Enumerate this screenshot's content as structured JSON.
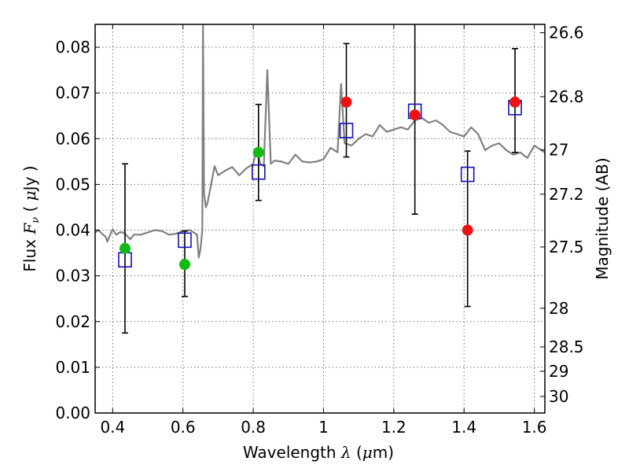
{
  "chart_data": {
    "type": "scatter",
    "xlabel": "Wavelength  λ (μm)",
    "ylabel": "Flux  Fν  ( μJy )",
    "ylabel_right": "Magnitude (AB)",
    "xlim": [
      0.35,
      1.63
    ],
    "ylim": [
      0.0,
      0.085
    ],
    "x_ticks": [
      0.4,
      0.6,
      0.8,
      1.0,
      1.2,
      1.4,
      1.6
    ],
    "x_tick_labels": [
      "0.4",
      "0.6",
      "0.8",
      "1",
      "1.2",
      "1.4",
      "1.6"
    ],
    "y_ticks": [
      0.0,
      0.01,
      0.02,
      0.03,
      0.04,
      0.05,
      0.06,
      0.07,
      0.08
    ],
    "y_tick_labels": [
      "0.00",
      "0.01",
      "0.02",
      "0.03",
      "0.04",
      "0.05",
      "0.06",
      "0.07",
      "0.08"
    ],
    "mag_tick_labels": [
      "26.6",
      "26.8",
      "27",
      "27.2",
      "27.5",
      "28",
      "28.5",
      "29",
      "30"
    ],
    "mag_ticks": [
      26.6,
      26.8,
      27.0,
      27.2,
      27.5,
      28.0,
      28.5,
      29.0,
      30.0
    ],
    "grid": true,
    "colors": {
      "model": "#808080",
      "detection": "#11bb11",
      "upper": "#ee1111",
      "model_phot": "#1111bb",
      "errorbar": "#000000"
    },
    "model_spectrum": {
      "x": [
        0.35,
        0.36,
        0.37,
        0.38,
        0.385,
        0.39,
        0.4,
        0.41,
        0.42,
        0.43,
        0.44,
        0.45,
        0.46,
        0.48,
        0.5,
        0.52,
        0.54,
        0.56,
        0.58,
        0.6,
        0.62,
        0.64,
        0.645,
        0.65,
        0.655,
        0.657,
        0.66,
        0.665,
        0.67,
        0.68,
        0.69,
        0.7,
        0.72,
        0.74,
        0.76,
        0.78,
        0.8,
        0.81,
        0.82,
        0.83,
        0.84,
        0.85,
        0.86,
        0.88,
        0.9,
        0.92,
        0.94,
        0.96,
        0.98,
        1.0,
        1.02,
        1.04,
        1.05,
        1.06,
        1.08,
        1.1,
        1.12,
        1.14,
        1.16,
        1.18,
        1.2,
        1.22,
        1.24,
        1.26,
        1.28,
        1.3,
        1.32,
        1.34,
        1.36,
        1.38,
        1.4,
        1.42,
        1.44,
        1.46,
        1.48,
        1.5,
        1.52,
        1.54,
        1.56,
        1.58,
        1.6,
        1.62,
        1.63
      ],
      "y": [
        0.0395,
        0.04,
        0.0392,
        0.0385,
        0.0375,
        0.0385,
        0.0402,
        0.039,
        0.0395,
        0.0395,
        0.0388,
        0.038,
        0.039,
        0.039,
        0.0395,
        0.04,
        0.0398,
        0.039,
        0.0392,
        0.0398,
        0.04,
        0.039,
        0.034,
        0.036,
        0.04,
        0.085,
        0.048,
        0.045,
        0.046,
        0.05,
        0.054,
        0.052,
        0.053,
        0.0538,
        0.052,
        0.0535,
        0.0545,
        0.058,
        0.0545,
        0.054,
        0.075,
        0.0545,
        0.0552,
        0.055,
        0.0545,
        0.0565,
        0.055,
        0.0548,
        0.055,
        0.0555,
        0.058,
        0.057,
        0.072,
        0.059,
        0.0585,
        0.06,
        0.061,
        0.0605,
        0.063,
        0.0615,
        0.062,
        0.0625,
        0.062,
        0.064,
        0.0645,
        0.0635,
        0.064,
        0.063,
        0.0615,
        0.061,
        0.0605,
        0.0625,
        0.061,
        0.0575,
        0.0585,
        0.059,
        0.0575,
        0.0565,
        0.057,
        0.0558,
        0.0585,
        0.0575,
        0.057
      ]
    },
    "detections": {
      "x": [
        0.435,
        0.605,
        0.815
      ],
      "y": [
        0.036,
        0.0325,
        0.057
      ]
    },
    "upper_points": {
      "x": [
        1.065,
        1.26,
        1.41,
        1.545
      ],
      "y": [
        0.068,
        0.0652,
        0.04,
        0.068
      ]
    },
    "model_photometry": {
      "x": [
        0.435,
        0.605,
        0.815,
        1.065,
        1.26,
        1.41,
        1.545
      ],
      "y": [
        0.0335,
        0.0378,
        0.0527,
        0.0618,
        0.066,
        0.0522,
        0.0668
      ]
    },
    "error_bars": [
      {
        "x": 0.435,
        "low": 0.0175,
        "high": 0.0545
      },
      {
        "x": 0.605,
        "low": 0.0255,
        "high": 0.0398
      },
      {
        "x": 0.815,
        "low": 0.0465,
        "high": 0.0675
      },
      {
        "x": 1.065,
        "low": 0.056,
        "high": 0.0808
      },
      {
        "x": 1.26,
        "low": 0.0435,
        "high": 0.087
      },
      {
        "x": 1.41,
        "low": 0.0233,
        "high": 0.0573
      },
      {
        "x": 1.545,
        "low": 0.057,
        "high": 0.0797
      }
    ]
  }
}
